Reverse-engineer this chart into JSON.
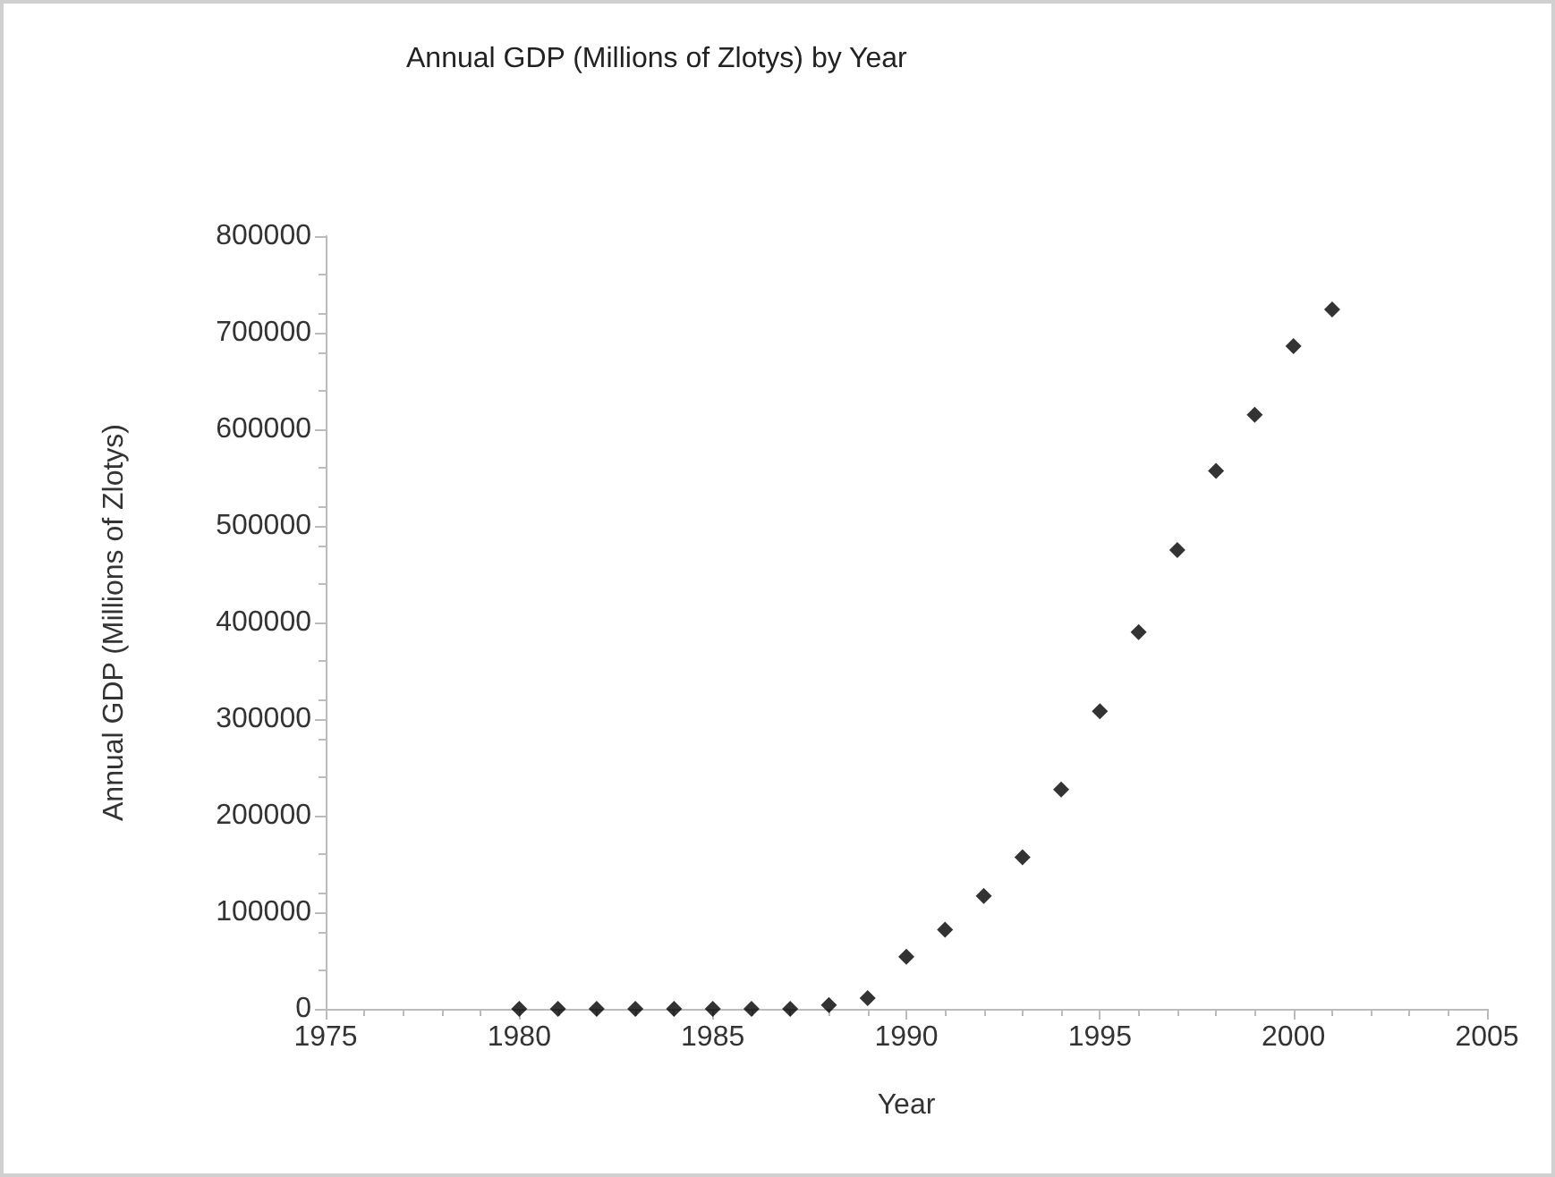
{
  "chart_data": {
    "type": "scatter",
    "title": "Annual GDP (Millions of Zlotys) by Year",
    "xlabel": "Year",
    "ylabel": "Annual GDP (Millions of Zlotys)",
    "x": [
      1980,
      1981,
      1982,
      1983,
      1984,
      1985,
      1986,
      1987,
      1988,
      1989,
      1990,
      1991,
      1992,
      1993,
      1994,
      1995,
      1996,
      1997,
      1998,
      1999,
      2000,
      2001
    ],
    "values": [
      0,
      0,
      0,
      0,
      0,
      0,
      0,
      0,
      4000,
      11000,
      54000,
      82000,
      117000,
      157000,
      227000,
      308000,
      390000,
      475000,
      557000,
      615000,
      686000,
      724000
    ],
    "color": "#000000",
    "marker": "diamond",
    "grid": false,
    "xlim": [
      1975,
      2005
    ],
    "xticks": [
      1975,
      1980,
      1985,
      1990,
      1995,
      2000,
      2005
    ],
    "ylim": [
      0,
      800000
    ],
    "yticks": [
      0,
      100000,
      200000,
      300000,
      400000,
      500000,
      600000,
      700000,
      800000
    ]
  }
}
